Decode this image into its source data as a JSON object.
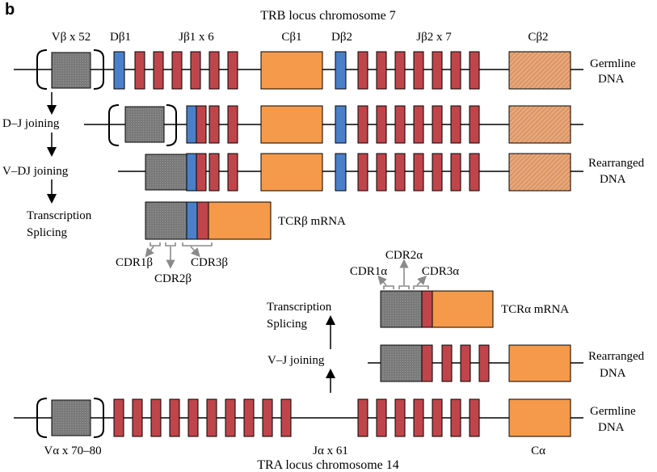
{
  "panel_label": "b",
  "colors": {
    "v_segment": "#808080",
    "d_segment": "#4a80c8",
    "j_segment": "#c0454a",
    "c_segment": "#f59a4a",
    "c2_segment": "#e8a77a",
    "outline": "#000000",
    "cdr_arrow": "#8a8a8a"
  },
  "trb": {
    "title": "TRB locus chromosome 7",
    "v_label": "Vβ x 52",
    "d1_label": "Dβ1",
    "j1_label": "Jβ1 x 6",
    "c1_label": "Cβ1",
    "d2_label": "Dβ2",
    "j2_label": "Jβ2 x 7",
    "c2_label": "Cβ2",
    "steps": {
      "dj": "D–J joining",
      "vdj": "V–DJ joining",
      "transcription": "Transcription",
      "splicing": "Splicing"
    },
    "germline_label_1": "Germline",
    "germline_label_2": "DNA",
    "rearranged_label_1": "Rearranged",
    "rearranged_label_2": "DNA",
    "mrna_label": "TCRβ mRNA",
    "cdr1": "CDR1β",
    "cdr2": "CDR2β",
    "cdr3": "CDR3β"
  },
  "tra": {
    "title": "TRA locus chromosome 14",
    "v_label": "Vα x 70–80",
    "j_label": "Jα x 61",
    "c_label": "Cα",
    "steps": {
      "vj": "V–J joining",
      "transcription": "Transcription",
      "splicing": "Splicing"
    },
    "germline_label_1": "Germline",
    "germline_label_2": "DNA",
    "rearranged_label_1": "Rearranged",
    "rearranged_label_2": "DNA",
    "mrna_label": "TCRα mRNA",
    "cdr1": "CDR1α",
    "cdr2": "CDR2α",
    "cdr3": "CDR3α"
  }
}
